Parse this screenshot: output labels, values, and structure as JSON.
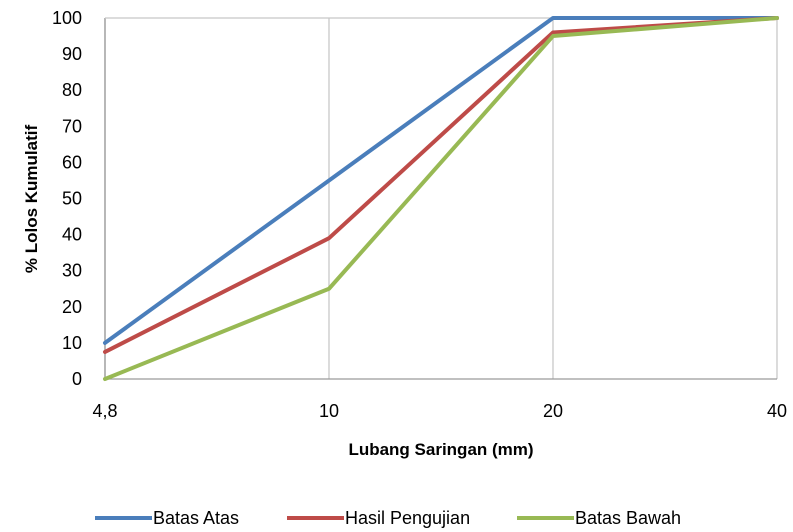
{
  "chart_data": {
    "type": "line",
    "x_categories": [
      "4,8",
      "10",
      "20",
      "40"
    ],
    "xlabel": "Lubang Saringan (mm)",
    "ylabel": "% Lolos Kumulatif",
    "ylim": [
      0,
      100
    ],
    "y_ticks": [
      0,
      10,
      20,
      30,
      40,
      50,
      60,
      70,
      80,
      90,
      100
    ],
    "grid": "vertical gridlines at each x category",
    "legend_position": "bottom",
    "series": [
      {
        "name": "Batas Atas",
        "color": "#4a7ebb",
        "values": [
          10,
          55,
          100,
          100
        ]
      },
      {
        "name": "Hasil Pengujian",
        "color": "#be4b48",
        "values": [
          7.5,
          39,
          96,
          100
        ]
      },
      {
        "name": "Batas Bawah",
        "color": "#98b954",
        "values": [
          0,
          25,
          95,
          100
        ]
      }
    ]
  }
}
